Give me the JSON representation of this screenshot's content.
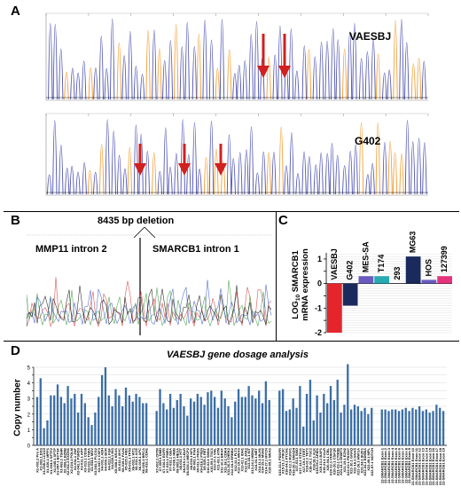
{
  "panelA": {
    "letter": "A",
    "top_label": "VAESBJ",
    "bottom_label": "G402"
  },
  "panelB": {
    "letter": "B",
    "deletion_label": "8435 bp deletion",
    "left_label": "MMP11 intron 2",
    "right_label": "SMARCB1 intron 1"
  },
  "panelC": {
    "letter": "C",
    "ylabel": "LOG10 SMARCB1 mRNA expression",
    "ylabel_line1": "LOG",
    "ylabel_sub": "10",
    "ylabel_rest": " SMARCB1",
    "ylabel_line2": "mRNA expression",
    "chart_data": {
      "type": "bar",
      "categories": [
        "VAESBJ",
        "G402",
        "MES-SA",
        "T174",
        "293",
        "MG63",
        "HOS",
        "127399"
      ],
      "values": [
        -2.0,
        -0.9,
        0.3,
        0.3,
        0.0,
        1.1,
        0.15,
        0.3
      ],
      "colors": [
        "#e4262c",
        "#1b2a5c",
        "#6a5bbf",
        "#27aab0",
        "#dddddd",
        "#1b2a5c",
        "#6a5bbf",
        "#e6337d"
      ],
      "yticks": [
        -2,
        -1.5,
        -1,
        -0.5,
        0,
        0.5,
        1
      ],
      "ylim": [
        -2,
        1.25
      ]
    }
  },
  "panelD": {
    "letter": "D",
    "title": "VAESBJ gene dosage analysis",
    "ylabel": "Copy number",
    "chart_data": {
      "type": "bar",
      "ylim": [
        0,
        5
      ],
      "yticks": [
        0,
        0.5,
        1,
        1.5,
        2,
        2.5,
        3,
        3.5,
        4,
        4.5,
        5
      ],
      "bar_color": "#3c6ea6",
      "groups": [
        [
          3.1,
          4.3,
          1.1,
          1.6,
          3.2,
          3.2,
          3.9,
          3.1,
          2.7,
          3.8,
          3.0,
          3.3,
          2.1,
          3.3,
          2.7,
          1.8,
          1.3,
          2.1,
          3.1,
          4.5,
          5.0,
          3.2,
          2.5,
          3.6,
          3.2,
          2.5,
          3.7,
          3.2,
          2.8,
          3.3,
          3.1,
          2.7,
          2.7
        ],
        [
          2.2,
          3.6,
          2.7,
          2.3,
          3.3,
          2.4,
          2.9,
          3.3,
          2.5,
          1.9,
          3.0,
          2.8,
          3.3,
          3.1,
          2.6,
          3.4,
          3.5,
          3.1,
          2.4,
          3.5,
          3.0,
          2.5,
          1.8,
          2.8,
          3.6,
          3.1,
          3.1,
          3.8,
          3.2,
          3.0,
          3.5,
          2.7,
          4.1,
          2.9
        ],
        [
          3.5,
          3.6,
          2.2,
          2.3,
          3.0,
          2.4,
          3.8,
          1.2,
          3.3,
          4.2,
          1.6,
          3.2,
          2.1,
          3.3,
          2.7,
          3.8,
          2.9,
          4.2,
          2.1,
          2.6,
          5.2,
          2.3,
          2.6,
          2.5,
          2.2,
          2.4,
          2.0,
          2.4
        ],
        [
          2.3,
          2.3,
          2.2,
          2.3,
          2.3,
          2.2,
          2.3,
          2.4,
          2.2,
          2.4,
          2.3,
          2.5,
          2.2,
          2.3,
          2.1,
          2.2,
          2.6,
          2.4,
          2.2
        ]
      ],
      "xlabels": [
        "X1-001.2 Pro A",
        "X1-003.1 DXS",
        "X1-008.1 LCA10",
        "X1-026.1 MPP1",
        "X1-034.1 SFTF2",
        "X1-045.1 SPTP",
        "X1-057.1 BCTSF",
        "X1-063.1 TSHR",
        "X2-008.1 BZRB",
        "X2-011.2 EXON1",
        "X2-024.1 POLM",
        "X2-031.1 ZNF",
        "X2-041.1 PSRD3",
        "X3-011.1 APP",
        "X3-013.1 CD38",
        "X3-022.1 TNFA",
        "X3-034.1 MOV",
        "X3-041.1 PLCG2",
        "X3-047.1 CSF3",
        "X4-001.1 ADH",
        "X4-009.1 BCR",
        "X4-022.1 FGF",
        "X4-028.1 INS",
        "X5-008.1 KRAS",
        "X5-012.1 MYC",
        "X5-019.1 PAX6",
        "X5-025.1 RB1",
        "X5-031.1 TP53",
        "X6-002.1 WT1",
        "X6-011.1 ACE",
        "X6-019.1 APC",
        "X6-026.1 BRCA",
        "X6-033.1 CDH1",
        "X7-002.1 CFTR",
        "X7-009.1 DMD",
        "X7-016.1 EGFR",
        "X7-023.1 FMR1",
        "X7-031.1 GBA",
        "X7-038.1 HBB",
        "X8-005.1 HEXA",
        "X8-011.1 HTT",
        "X8-019.1 LDLR",
        "X8-026.1 MECP2",
        "X8-033.1 NF1",
        "X9-003.1 PAH",
        "X9-011.1 PKD1",
        "X9-018.1 PTEN",
        "X9-025.1 RET",
        "X10-02.1 SMN1",
        "X10-09.1 TSC1",
        "X10-17.1 VHL",
        "X11-03.1 ATM",
        "X11-10.1 BRAF",
        "X11-18.1 CDK4",
        "X11-26.1 CHEK2",
        "X12-04.1 ERBB2",
        "X12-11.1 FLT3",
        "X12-19.1 HRAS",
        "X13-02.1 IDH1",
        "X13-09.1 JAK2",
        "X13-16.1 KIT",
        "X13-24.1 MDM2",
        "X14-03.1 MET",
        "X14-11.1 MLH1",
        "X14-19.1 MSH2",
        "X14-27.1 MYCN",
        "X15-05.1 NRAS",
        "X15-13.1 PDGFR",
        "X15-21.1 PIK3C",
        "X16-04.1 PTCH1",
        "X16-12.1 RUNX1",
        "X16-20.1 SMAD4",
        "X17-03.1 SMO",
        "X17-11.1 STK11",
        "X17-19.1 TERT",
        "X18-02.1 TET2",
        "X18-10.1 TSC2",
        "X18-18.1 ALK",
        "X19-05.1 ARID1",
        "X19-13.1 BAP1",
        "X19-21.1 CALR",
        "X20-04.1 CBL",
        "X20-12.1 CDKN2",
        "X20-20.1 CSF1R",
        "X21-03.1 CTNNB",
        "X21-11.1 DNMT3",
        "X21-19.1 EZH2",
        "X22-02.1 FBXW7",
        "X22-10.1 GNAQ",
        "X22-18.1 GNAS",
        "X22-26.1 HNF1A",
        "X22-34.1 IKZF1",
        "X22-41.1 KDM6A",
        "X22-49.1 MPL",
        "X22-57.1 NOTCH",
        "22-SMARCB1 Exon 1",
        "22-SMARCB1 Exon 2",
        "22-SMARCB1 Exon 3",
        "22-SMARCB1 Exon 4",
        "22-SMARCB1 Exon 5",
        "22-SMARCB1 Exon 6",
        "22-SMARCB1 Exon 7",
        "22-SMARCB1 Exon 8",
        "22-SMARCB1 Exon 9",
        "22-SMARCB1 Exon 10",
        "22-SMARCB1 Exon 11",
        "22-SMARCB1 Exon 12",
        "22-SMARCB1 Exon 13",
        "22-SMARCB1 Exon 14",
        "22-SMARCB1 Exon 15",
        "22-SMARCB1 Exon 16",
        "22-SMARCB1 Exon 17",
        "22-SMARCB1 Exon 18",
        "22-SMARCB1 Exon 19"
      ]
    }
  }
}
